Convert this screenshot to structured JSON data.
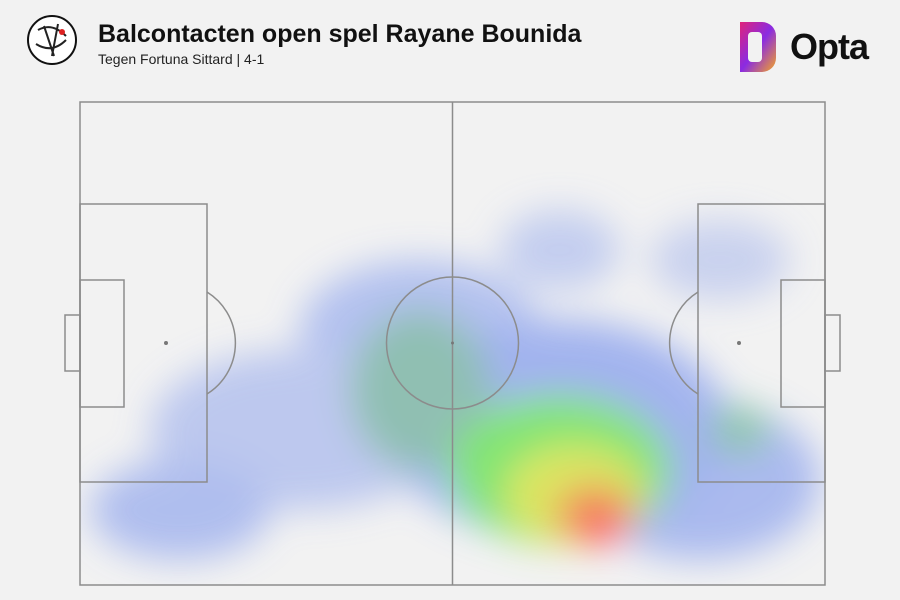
{
  "header": {
    "title": "Balcontacten open spel Rayane Bounida",
    "subtitle": "Tegen Fortuna Sittard | 4-1"
  },
  "brand": {
    "name": "Opta"
  }
}
